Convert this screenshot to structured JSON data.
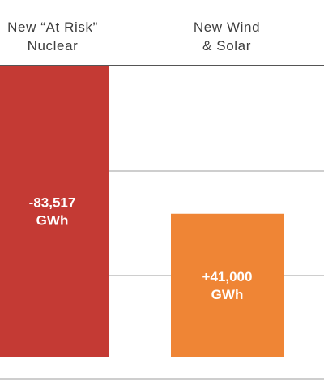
{
  "chart_data": {
    "type": "bar",
    "categories": [
      [
        "New “At Risk”",
        "Nuclear"
      ],
      [
        "New Wind",
        "& Solar"
      ]
    ],
    "values": [
      -83517,
      41000
    ],
    "unit": "GWh",
    "data_labels": [
      [
        "-83,517",
        "GWh"
      ],
      [
        "+41,000",
        "GWh"
      ]
    ],
    "colors": [
      "#c43a34",
      "#ef8535"
    ],
    "grid": true,
    "gridline_color": "#bdbdbd",
    "axis_color": "#555555",
    "xlabel": "",
    "ylabel": ""
  }
}
